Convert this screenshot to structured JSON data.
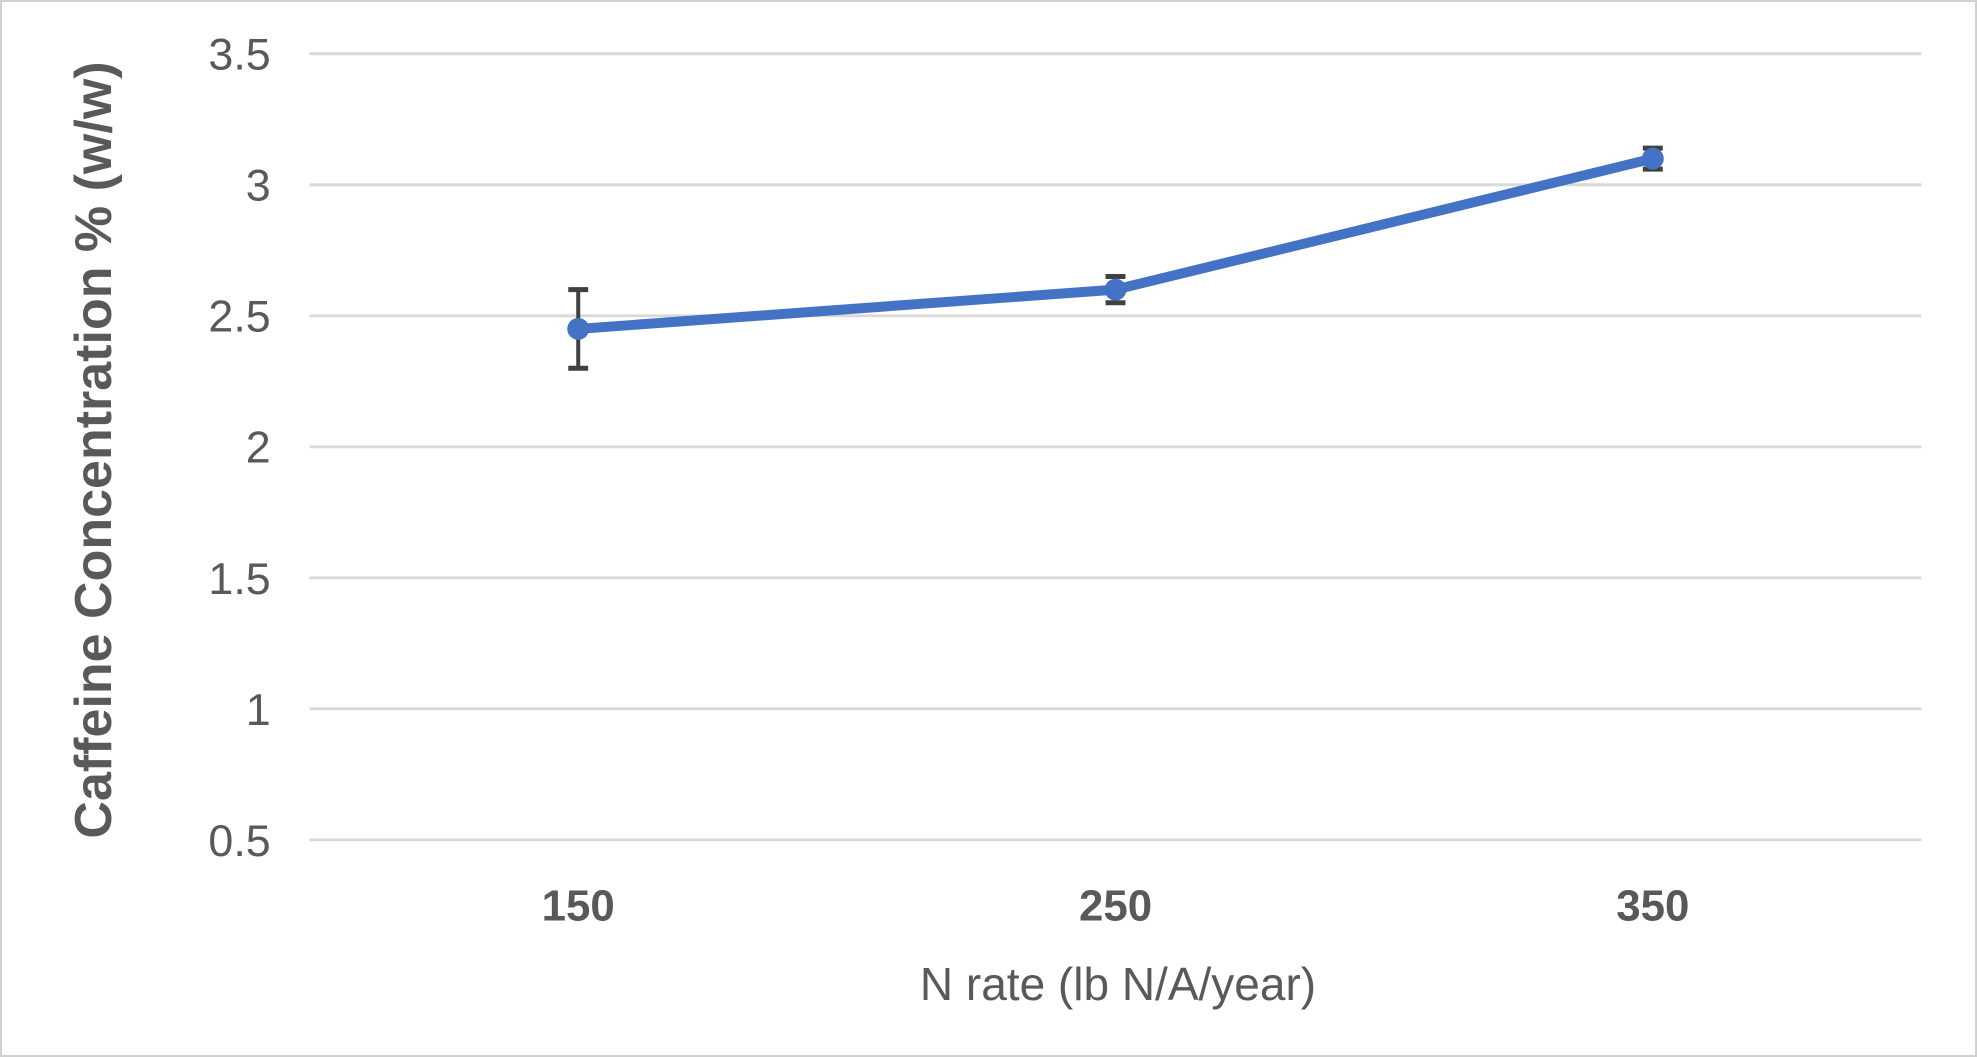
{
  "colors": {
    "line": "#4472C4",
    "marker": "#4472C4",
    "error_bar": "#404040",
    "gridline": "#D9D9D9",
    "axis_text": "#595959",
    "frame_border": "#D0D0D0",
    "background": "#FFFFFF"
  },
  "chart_data": {
    "type": "line",
    "title": "",
    "xlabel": "N rate (lb N/A/year)",
    "ylabel": "Caffeine Concentration % (w/w)",
    "categories": [
      "150",
      "250",
      "350"
    ],
    "series": [
      {
        "name": "Caffeine Concentration",
        "values": [
          2.45,
          2.6,
          3.1
        ],
        "error_bars": [
          0.15,
          0.05,
          0.04
        ]
      }
    ],
    "ylim": [
      0.5,
      3.5
    ],
    "yticks": [
      "0.5",
      "1",
      "1.5",
      "2",
      "2.5",
      "3",
      "3.5"
    ],
    "grid": true,
    "legend": "none",
    "marker_style": "circle",
    "error_bar_style": "plus-minus-caps"
  }
}
